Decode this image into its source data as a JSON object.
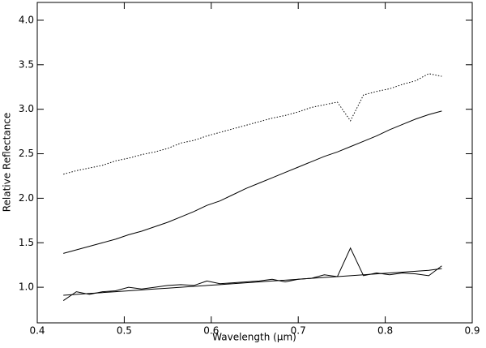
{
  "chart_data": {
    "type": "line",
    "x_label": "Wavelength (μm)",
    "y_label": "Relative Reflectance",
    "x": [
      0.43,
      0.445,
      0.46,
      0.475,
      0.49,
      0.505,
      0.52,
      0.535,
      0.55,
      0.565,
      0.58,
      0.595,
      0.61,
      0.625,
      0.64,
      0.655,
      0.67,
      0.685,
      0.7,
      0.715,
      0.73,
      0.745,
      0.76,
      0.775,
      0.79,
      0.805,
      0.82,
      0.835,
      0.85,
      0.865
    ],
    "series": [
      {
        "color": "#000000",
        "style": "dotted",
        "values": [
          2.27,
          2.31,
          2.34,
          2.37,
          2.42,
          2.45,
          2.49,
          2.52,
          2.56,
          2.62,
          2.65,
          2.7,
          2.74,
          2.78,
          2.82,
          2.86,
          2.9,
          2.93,
          2.97,
          3.02,
          3.05,
          3.08,
          2.87,
          3.16,
          3.2,
          3.23,
          3.28,
          3.32,
          3.4,
          3.37
        ]
      },
      {
        "color": "#000000",
        "style": "solid",
        "values": [
          1.38,
          1.42,
          1.46,
          1.5,
          1.54,
          1.59,
          1.63,
          1.68,
          1.73,
          1.79,
          1.85,
          1.92,
          1.97,
          2.04,
          2.11,
          2.17,
          2.23,
          2.29,
          2.35,
          2.41,
          2.47,
          2.52,
          2.58,
          2.64,
          2.7,
          2.77,
          2.83,
          2.89,
          2.94,
          2.98
        ]
      },
      {
        "color": "#000000",
        "style": "solid",
        "values": [
          0.85,
          0.95,
          0.92,
          0.95,
          0.96,
          1.0,
          0.98,
          1.0,
          1.02,
          1.03,
          1.02,
          1.07,
          1.04,
          1.05,
          1.06,
          1.07,
          1.09,
          1.06,
          1.09,
          1.1,
          1.14,
          1.12,
          1.44,
          1.13,
          1.16,
          1.14,
          1.16,
          1.15,
          1.13,
          1.24
        ]
      },
      {
        "color": "#000000",
        "style": "solid",
        "values": [
          0.91,
          0.92,
          0.93,
          0.94,
          0.95,
          0.96,
          0.97,
          0.98,
          0.99,
          1.0,
          1.01,
          1.02,
          1.03,
          1.04,
          1.05,
          1.06,
          1.07,
          1.08,
          1.09,
          1.1,
          1.11,
          1.12,
          1.13,
          1.14,
          1.15,
          1.16,
          1.17,
          1.18,
          1.19,
          1.21
        ]
      }
    ],
    "xlim": [
      0.4,
      0.9
    ],
    "xticks": [
      0.4,
      0.5,
      0.6,
      0.7,
      0.8,
      0.9
    ],
    "ylim": [
      0.6,
      4.2
    ],
    "yticks": [
      {
        "value": 1,
        "label": "1.0"
      },
      1.5,
      {
        "value": 2,
        "label": "2.0"
      },
      2.5,
      {
        "value": 3,
        "label": "3.0"
      },
      3.5,
      {
        "value": 4,
        "label": "4.0"
      }
    ],
    "grid": false
  }
}
